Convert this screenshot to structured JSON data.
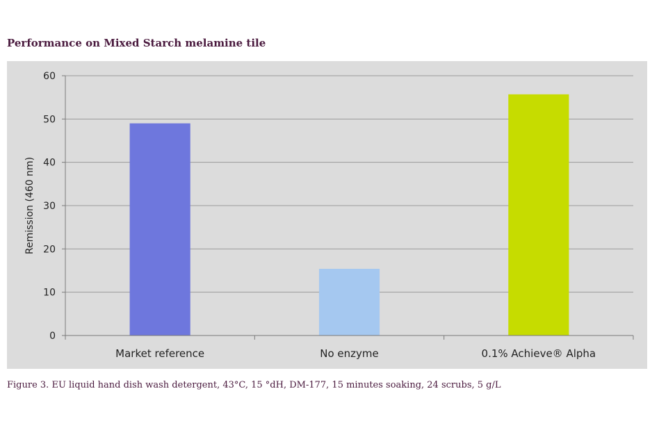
{
  "caption": "Figure 3. EU liquid hand dish wash detergent, 43°C, 15 °dH, DM-177, 15 minutes soaking, 24 scrubs, 5 g/L",
  "chart_data": {
    "type": "bar",
    "title": "Performance on Mixed Starch melamine tile",
    "xlabel": "",
    "ylabel": "Remission (460 nm)",
    "categories": [
      "Market reference",
      "No enzyme",
      "0.1% Achieve® Alpha"
    ],
    "values": [
      49,
      15.4,
      55.7
    ],
    "bar_colors": [
      "#6e77dd",
      "#a5c8f0",
      "#c6dc00"
    ],
    "ylim": [
      0,
      60
    ],
    "yticks": [
      "0",
      "10",
      "20",
      "30",
      "40",
      "50",
      "60"
    ],
    "grid": true,
    "legend": "none",
    "plot_background": "#dcdcdc"
  }
}
